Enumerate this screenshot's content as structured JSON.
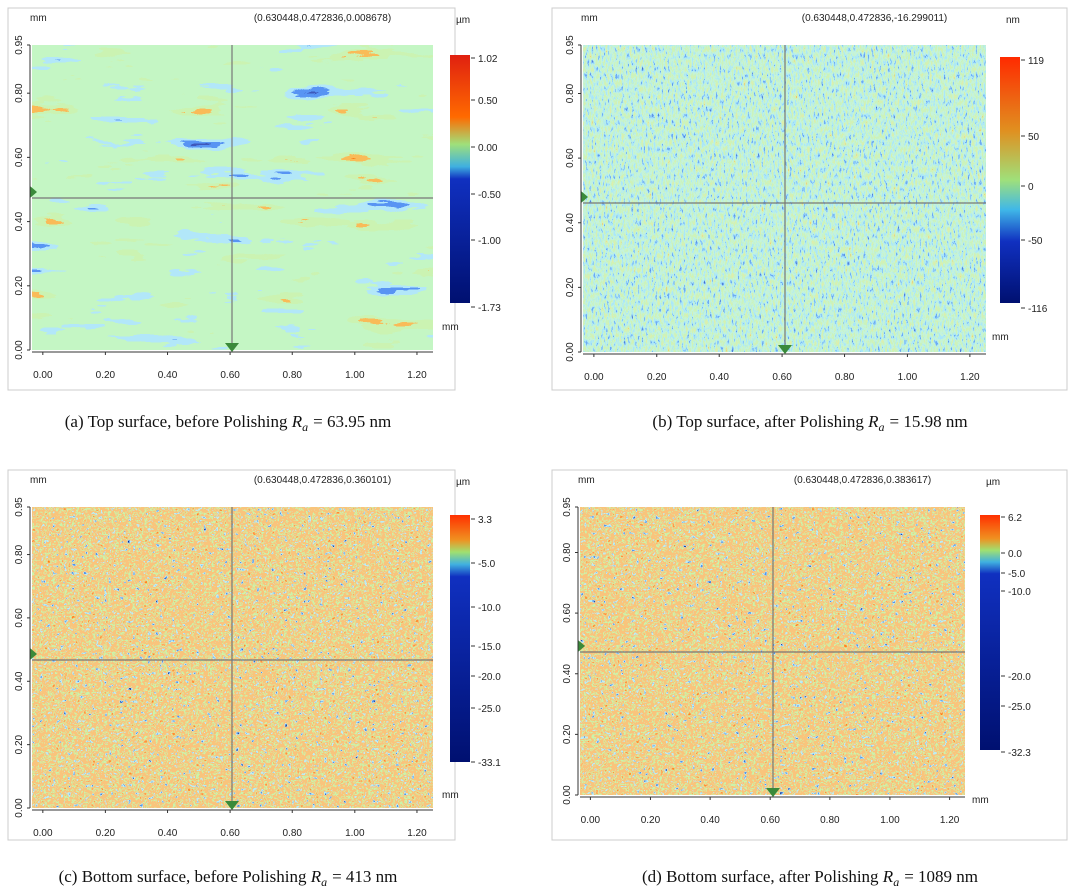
{
  "panels": [
    {
      "unit_left": "mm",
      "coords": "(0.630448,0.472836,0.008678)",
      "unit_right": "µm",
      "yticks": [
        "0.00",
        "0.20",
        "0.40",
        "0.60",
        "0.80",
        "0.95"
      ],
      "xticks": [
        "0.00",
        "0.20",
        "0.40",
        "0.60",
        "0.80",
        "1.00",
        "1.20"
      ],
      "x_unit": "mm",
      "colorbar": [
        "1.02",
        "0.50",
        "0.00",
        "-0.50",
        "-1.00",
        "-1.73"
      ],
      "label": "(a)",
      "caption": "Top surface, before Polishing",
      "ra_symbol": "R",
      "ra_sub": "a",
      "ra_value": "= 63.95 nm"
    },
    {
      "unit_left": "mm",
      "coords": "(0.630448,0.472836,-16.299011)",
      "unit_right": "nm",
      "yticks": [
        "0.00",
        "0.20",
        "0.40",
        "0.60",
        "0.80",
        "0.95"
      ],
      "xticks": [
        "0.00",
        "0.20",
        "0.40",
        "0.60",
        "0.80",
        "1.00",
        "1.20"
      ],
      "x_unit": "mm",
      "colorbar": [
        "119",
        "50",
        "0",
        "-50",
        "-116"
      ],
      "label": "(b)",
      "caption": "Top surface, after Polishing",
      "ra_symbol": "R",
      "ra_sub": "a",
      "ra_value": "= 15.98 nm"
    },
    {
      "unit_left": "mm",
      "coords": "(0.630448,0.472836,0.360101)",
      "unit_right": "µm",
      "yticks": [
        "0.00",
        "0.20",
        "0.40",
        "0.60",
        "0.80",
        "0.95"
      ],
      "xticks": [
        "0.00",
        "0.20",
        "0.40",
        "0.60",
        "0.80",
        "1.00",
        "1.20"
      ],
      "x_unit": "mm",
      "colorbar": [
        "3.3",
        "-5.0",
        "-10.0",
        "-15.0",
        "-20.0",
        "-25.0",
        "-33.1"
      ],
      "label": "(c)",
      "caption": "Bottom surface, before Polishing",
      "ra_symbol": "R",
      "ra_sub": "a",
      "ra_value": "= 413 nm"
    },
    {
      "unit_left": "mm",
      "coords": "(0.630448,0.472836,0.383617)",
      "unit_right": "µm",
      "yticks": [
        "0.00",
        "0.20",
        "0.40",
        "0.60",
        "0.80",
        "0.95"
      ],
      "xticks": [
        "0.00",
        "0.20",
        "0.40",
        "0.60",
        "0.80",
        "1.00",
        "1.20"
      ],
      "x_unit": "mm",
      "colorbar": [
        "6.2",
        "0.0",
        "-5.0",
        "-10.0",
        "-20.0",
        "-25.0",
        "-32.3"
      ],
      "label": "(d)",
      "caption": "Bottom surface, after Polishing",
      "ra_symbol": "R",
      "ra_sub": "a",
      "ra_value": "= 1089 nm"
    }
  ]
}
